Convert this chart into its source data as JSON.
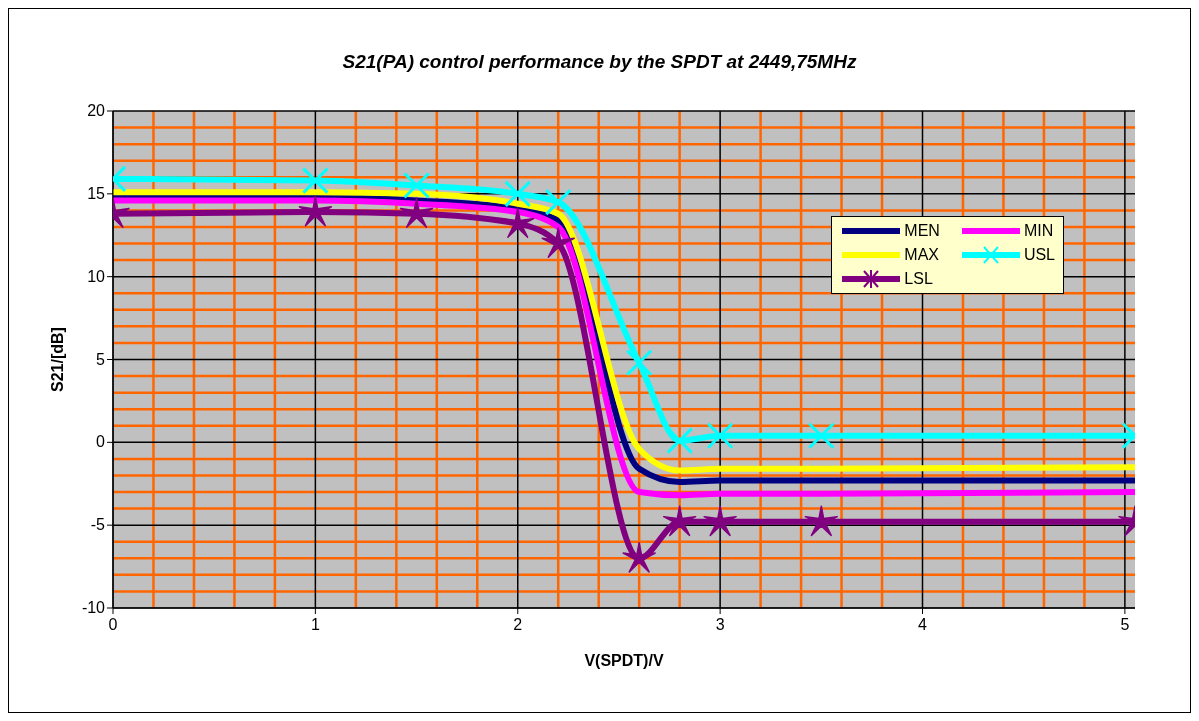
{
  "chart_data": {
    "type": "line",
    "title": "S21(PA) control performance by the SPDT at 2449,75MHz",
    "xlabel": "V(SPDT)/V",
    "ylabel": "S21/[dB]",
    "xlim": [
      0,
      5.05
    ],
    "xticks": [
      0,
      {
        "value": 0.2,
        "label": null
      },
      {
        "value": 0.4,
        "label": null
      },
      {
        "value": 0.6,
        "label": null
      },
      {
        "value": 0.8,
        "label": null
      },
      1,
      {
        "value": 1.2,
        "label": null
      },
      {
        "value": 1.4,
        "label": null
      },
      {
        "value": 1.6,
        "label": null
      },
      {
        "value": 1.8,
        "label": null
      },
      2,
      {
        "value": 2.2,
        "label": null
      },
      {
        "value": 2.4,
        "label": null
      },
      {
        "value": 2.6,
        "label": null
      },
      {
        "value": 2.8,
        "label": null
      },
      3,
      {
        "value": 3.2,
        "label": null
      },
      {
        "value": 3.4,
        "label": null
      },
      {
        "value": 3.6,
        "label": null
      },
      {
        "value": 3.8,
        "label": null
      },
      4,
      {
        "value": 4.2,
        "label": null
      },
      {
        "value": 4.4,
        "label": null
      },
      {
        "value": 4.6,
        "label": null
      },
      {
        "value": 4.8,
        "label": null
      },
      5
    ],
    "ylim": [
      -10,
      20
    ],
    "yticks": [
      -10,
      {
        "value": -9,
        "label": null
      },
      {
        "value": -8,
        "label": null
      },
      {
        "value": -7,
        "label": null
      },
      {
        "value": -6,
        "label": null
      },
      -5,
      {
        "value": -4,
        "label": null
      },
      {
        "value": -3,
        "label": null
      },
      {
        "value": -2,
        "label": null
      },
      {
        "value": -1,
        "label": null
      },
      0,
      {
        "value": 1,
        "label": null
      },
      {
        "value": 2,
        "label": null
      },
      {
        "value": 3,
        "label": null
      },
      {
        "value": 4,
        "label": null
      },
      5,
      {
        "value": 6,
        "label": null
      },
      {
        "value": 7,
        "label": null
      },
      {
        "value": 8,
        "label": null
      },
      {
        "value": 9,
        "label": null
      },
      10,
      {
        "value": 11,
        "label": null
      },
      {
        "value": 12,
        "label": null
      },
      {
        "value": 13,
        "label": null
      },
      {
        "value": 14,
        "label": null
      },
      15,
      {
        "value": 16,
        "label": null
      },
      {
        "value": 17,
        "label": null
      },
      {
        "value": 18,
        "label": null
      },
      {
        "value": 19,
        "label": null
      },
      20
    ],
    "grid": true,
    "legend": "top right",
    "line_style": "solid",
    "x": [
      0,
      1,
      1.5,
      2,
      2.2,
      2.6,
      2.8,
      3,
      3.5,
      5.05
    ],
    "series": [
      {
        "name": "MEN",
        "color": "#000080",
        "marker": "none",
        "values": [
          14.8,
          14.8,
          14.6,
          14.1,
          13.4,
          -1.6,
          -2.4,
          -2.3,
          -2.3,
          -2.3
        ]
      },
      {
        "name": "MIN",
        "color": "#ff00ff",
        "marker": "none",
        "values": [
          14.6,
          14.6,
          14.4,
          13.9,
          13.0,
          -3.0,
          -3.2,
          -3.1,
          -3.1,
          -3.0
        ]
      },
      {
        "name": "MAX",
        "color": "#ffff00",
        "marker": "none",
        "values": [
          15.1,
          15.1,
          15.0,
          14.4,
          13.8,
          -0.4,
          -1.7,
          -1.6,
          -1.6,
          -1.5
        ]
      },
      {
        "name": "USL",
        "color": "#00ffff",
        "marker": "cross",
        "values": [
          15.9,
          15.8,
          15.5,
          15.0,
          14.5,
          4.8,
          0.1,
          0.4,
          0.4,
          0.4
        ]
      },
      {
        "name": "LSL",
        "color": "#800080",
        "marker": "star",
        "values": [
          13.8,
          13.9,
          13.8,
          13.2,
          12.0,
          -7.0,
          -4.8,
          -4.8,
          -4.8,
          -4.8
        ]
      }
    ]
  }
}
